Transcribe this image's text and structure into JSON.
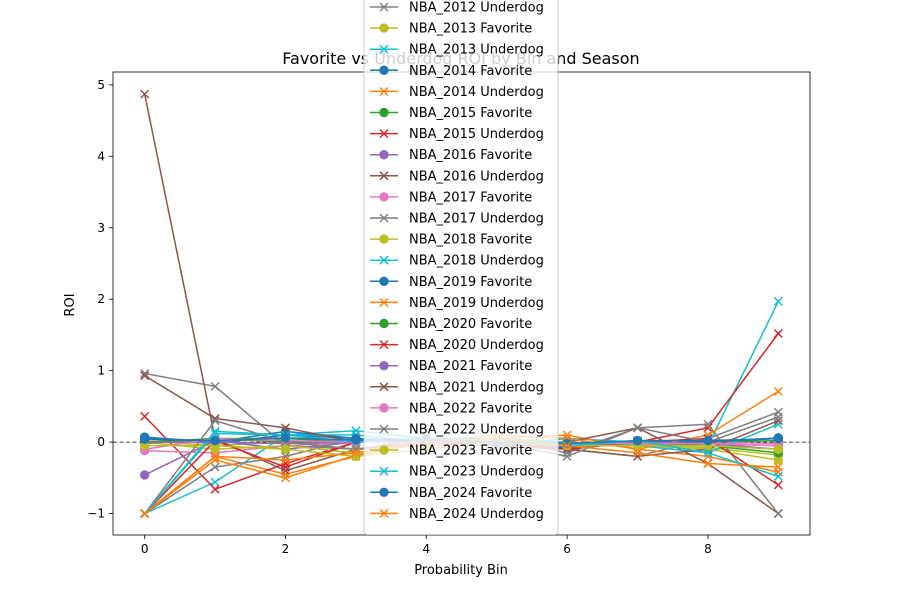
{
  "chart_data": {
    "type": "line",
    "title": "Favorite vs Underdog ROI by Bin and Season",
    "xlabel": "Probability Bin",
    "ylabel": "ROI",
    "xlim": [
      -0.45,
      9.45
    ],
    "ylim": [
      -1.3,
      5.18
    ],
    "x_ticks": [
      0,
      2,
      4,
      6,
      8
    ],
    "y_ticks": [
      -1,
      0,
      1,
      2,
      3,
      4,
      5
    ],
    "reference_line": 0,
    "legend_position": "upper center",
    "x": [
      0,
      1,
      2,
      3,
      4,
      5,
      6,
      7,
      8,
      9
    ],
    "series": [
      {
        "name": "NBA_2012 Underdog",
        "color": "#7f7f7f",
        "marker": "x",
        "values": [
          0.96,
          0.78,
          -0.05,
          -0.1,
          -0.05,
          0.0,
          -0.1,
          -0.2,
          0.05,
          0.42
        ]
      },
      {
        "name": "NBA_2013 Favorite",
        "color": "#bcbd22",
        "marker": "o",
        "values": [
          0.02,
          -0.05,
          0.0,
          -0.1,
          -0.02,
          0.0,
          -0.05,
          -0.02,
          -0.08,
          -0.18
        ]
      },
      {
        "name": "NBA_2013 Underdog",
        "color": "#17becf",
        "marker": "x",
        "values": [
          -1.0,
          -0.56,
          0.1,
          0.16,
          0.05,
          -0.05,
          0.05,
          0.0,
          -0.05,
          1.97
        ]
      },
      {
        "name": "NBA_2014 Favorite",
        "color": "#1f77b4",
        "marker": "o",
        "values": [
          0.05,
          -0.02,
          0.1,
          0.05,
          0.0,
          0.0,
          -0.08,
          0.02,
          0.0,
          0.05
        ]
      },
      {
        "name": "NBA_2014 Underdog",
        "color": "#ff7f0e",
        "marker": "x",
        "values": [
          -1.0,
          -0.2,
          -0.45,
          -0.2,
          0.0,
          0.05,
          0.1,
          -0.1,
          -0.2,
          -0.42
        ]
      },
      {
        "name": "NBA_2015 Favorite",
        "color": "#2ca02c",
        "marker": "o",
        "values": [
          0.0,
          0.05,
          0.0,
          0.02,
          0.05,
          0.0,
          0.0,
          -0.05,
          0.0,
          0.02
        ]
      },
      {
        "name": "NBA_2015 Underdog",
        "color": "#d62728",
        "marker": "x",
        "values": [
          0.36,
          -0.66,
          -0.3,
          0.0,
          0.05,
          0.0,
          -0.05,
          0.0,
          0.2,
          1.52
        ]
      },
      {
        "name": "NBA_2016 Favorite",
        "color": "#9467bd",
        "marker": "o",
        "values": [
          -0.46,
          0.02,
          -0.1,
          0.0,
          0.02,
          0.0,
          -0.05,
          -0.05,
          -0.02,
          -0.1
        ]
      },
      {
        "name": "NBA_2016 Underdog",
        "color": "#8c564b",
        "marker": "x",
        "values": [
          4.87,
          0.05,
          -0.4,
          -0.1,
          0.0,
          -0.05,
          0.0,
          0.2,
          -0.3,
          -1.0
        ]
      },
      {
        "name": "NBA_2017 Favorite",
        "color": "#e377c2",
        "marker": "o",
        "values": [
          -0.12,
          -0.15,
          -0.05,
          0.0,
          0.02,
          -0.02,
          -0.05,
          -0.05,
          0.0,
          -0.02
        ]
      },
      {
        "name": "NBA_2017 Underdog",
        "color": "#7f7f7f",
        "marker": "x",
        "values": [
          -1.0,
          -0.35,
          -0.2,
          0.05,
          0.0,
          0.05,
          -0.15,
          0.2,
          0.25,
          -1.0
        ]
      },
      {
        "name": "NBA_2018 Favorite",
        "color": "#bcbd22",
        "marker": "o",
        "values": [
          0.0,
          -0.1,
          -0.05,
          -0.15,
          0.0,
          0.0,
          -0.05,
          -0.05,
          -0.1,
          -0.25
        ]
      },
      {
        "name": "NBA_2018 Underdog",
        "color": "#17becf",
        "marker": "x",
        "values": [
          -1.0,
          0.15,
          0.1,
          0.1,
          0.0,
          0.05,
          0.0,
          -0.05,
          -0.15,
          0.25
        ]
      },
      {
        "name": "NBA_2019 Favorite",
        "color": "#1f77b4",
        "marker": "o",
        "values": [
          0.07,
          0.0,
          0.15,
          0.05,
          0.02,
          0.0,
          -0.05,
          0.02,
          0.0,
          0.06
        ]
      },
      {
        "name": "NBA_2019 Underdog",
        "color": "#ff7f0e",
        "marker": "x",
        "values": [
          -1.0,
          -0.25,
          -0.5,
          -0.18,
          0.0,
          0.1,
          0.05,
          -0.1,
          0.1,
          0.71
        ]
      },
      {
        "name": "NBA_2020 Favorite",
        "color": "#2ca02c",
        "marker": "o",
        "values": [
          -0.02,
          0.05,
          0.05,
          0.0,
          0.02,
          0.0,
          -0.05,
          0.0,
          -0.05,
          -0.15
        ]
      },
      {
        "name": "NBA_2020 Underdog",
        "color": "#d62728",
        "marker": "x",
        "values": [
          -1.0,
          0.02,
          -0.35,
          0.0,
          0.05,
          0.0,
          -0.1,
          0.0,
          0.05,
          -0.6
        ]
      },
      {
        "name": "NBA_2021 Favorite",
        "color": "#9467bd",
        "marker": "o",
        "values": [
          0.0,
          0.0,
          -0.02,
          0.0,
          0.0,
          -0.02,
          -0.05,
          0.0,
          -0.02,
          -0.05
        ]
      },
      {
        "name": "NBA_2021 Underdog",
        "color": "#8c564b",
        "marker": "x",
        "values": [
          0.93,
          0.33,
          0.2,
          0.0,
          0.05,
          -0.05,
          -0.1,
          -0.2,
          -0.1,
          0.3
        ]
      },
      {
        "name": "NBA_2022 Favorite",
        "color": "#e377c2",
        "marker": "o",
        "values": [
          -0.1,
          0.05,
          0.02,
          0.0,
          0.0,
          0.0,
          -0.02,
          -0.02,
          -0.02,
          -0.05
        ]
      },
      {
        "name": "NBA_2022 Underdog",
        "color": "#7f7f7f",
        "marker": "x",
        "values": [
          -1.0,
          0.3,
          0.0,
          -0.1,
          0.05,
          0.0,
          -0.2,
          0.2,
          0.0,
          0.35
        ]
      },
      {
        "name": "NBA_2023 Favorite",
        "color": "#bcbd22",
        "marker": "o",
        "values": [
          -0.05,
          -0.05,
          -0.1,
          -0.2,
          -0.1,
          0.0,
          -0.05,
          -0.05,
          -0.05,
          -0.1
        ]
      },
      {
        "name": "NBA_2023 Underdog",
        "color": "#17becf",
        "marker": "x",
        "values": [
          -1.0,
          0.12,
          0.1,
          0.0,
          0.05,
          0.05,
          -0.05,
          0.02,
          -0.15,
          -0.48
        ]
      },
      {
        "name": "NBA_2024 Favorite",
        "color": "#1f77b4",
        "marker": "o",
        "values": [
          0.04,
          0.02,
          0.06,
          0.03,
          0.02,
          0.0,
          -0.02,
          0.02,
          0.02,
          0.05
        ]
      },
      {
        "name": "NBA_2024 Underdog",
        "color": "#ff7f0e",
        "marker": "x",
        "values": [
          -1.0,
          -0.2,
          -0.25,
          -0.15,
          0.0,
          0.05,
          -0.05,
          -0.15,
          -0.3,
          -0.35
        ]
      }
    ]
  }
}
